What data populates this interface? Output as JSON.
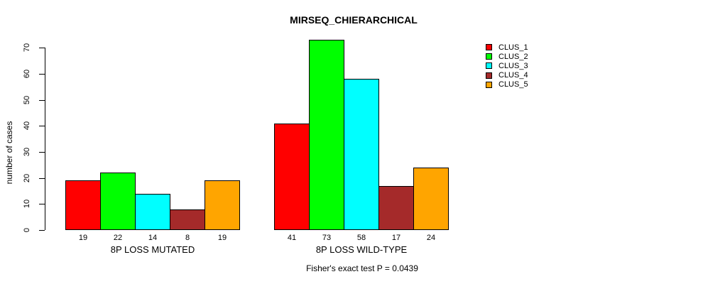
{
  "page": {
    "background_color": "#ffffff",
    "text_color": "#000000"
  },
  "chart_data": {
    "type": "bar",
    "title": "MIRSEQ_CHIERARCHICAL",
    "ylabel": "number of cases",
    "xlabel": "",
    "ylim": [
      0,
      70
    ],
    "yticks": [
      0,
      10,
      20,
      30,
      40,
      50,
      60,
      70
    ],
    "grid": false,
    "bar_border_color": "#000000",
    "categories": [
      "8P LOSS MUTATED",
      "8P LOSS WILD-TYPE"
    ],
    "series": [
      {
        "name": "CLUS_1",
        "color": "#FF0000",
        "values": [
          19,
          41
        ]
      },
      {
        "name": "CLUS_2",
        "color": "#00FF00",
        "values": [
          22,
          73
        ]
      },
      {
        "name": "CLUS_3",
        "color": "#00FFFF",
        "values": [
          14,
          58
        ]
      },
      {
        "name": "CLUS_4",
        "color": "#A52A2A",
        "values": [
          8,
          17
        ]
      },
      {
        "name": "CLUS_5",
        "color": "#FFA500",
        "values": [
          19,
          24
        ]
      }
    ],
    "bar_value_labels": {
      "8P LOSS MUTATED": [
        19,
        22,
        14,
        8,
        19
      ],
      "8P LOSS WILD-TYPE": [
        41,
        73,
        58,
        17,
        24
      ]
    },
    "legend": {
      "position": "right",
      "entries": [
        "CLUS_1",
        "CLUS_2",
        "CLUS_3",
        "CLUS_4",
        "CLUS_5"
      ]
    },
    "annotation": "Fisher's exact test P = 0.0439"
  }
}
